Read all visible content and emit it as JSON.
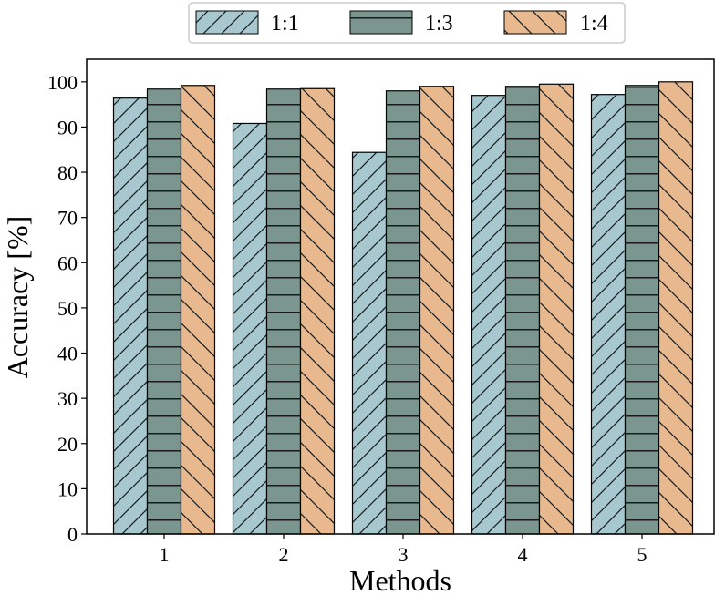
{
  "chart_data": {
    "type": "bar",
    "categories": [
      "1",
      "2",
      "3",
      "4",
      "5"
    ],
    "series": [
      {
        "name": "1:1",
        "values": [
          96.4,
          90.8,
          84.4,
          97.0,
          97.2
        ],
        "color": "#a8c8d0",
        "hatch": "forward-diagonal"
      },
      {
        "name": "1:3",
        "values": [
          98.4,
          98.4,
          98.0,
          99.0,
          99.2
        ],
        "color": "#7b968f",
        "hatch": "horizontal"
      },
      {
        "name": "1:4",
        "values": [
          99.2,
          98.5,
          99.0,
          99.5,
          100.0
        ],
        "color": "#e8b88e",
        "hatch": "back-diagonal"
      }
    ],
    "title": "",
    "xlabel": "Methods",
    "ylabel": "Accuracy [%]",
    "ylim": [
      0,
      105
    ],
    "yticks": [
      "0",
      "10",
      "20",
      "30",
      "40",
      "50",
      "60",
      "70",
      "80",
      "90",
      "100"
    ],
    "grid": false,
    "legend": "top-center"
  }
}
